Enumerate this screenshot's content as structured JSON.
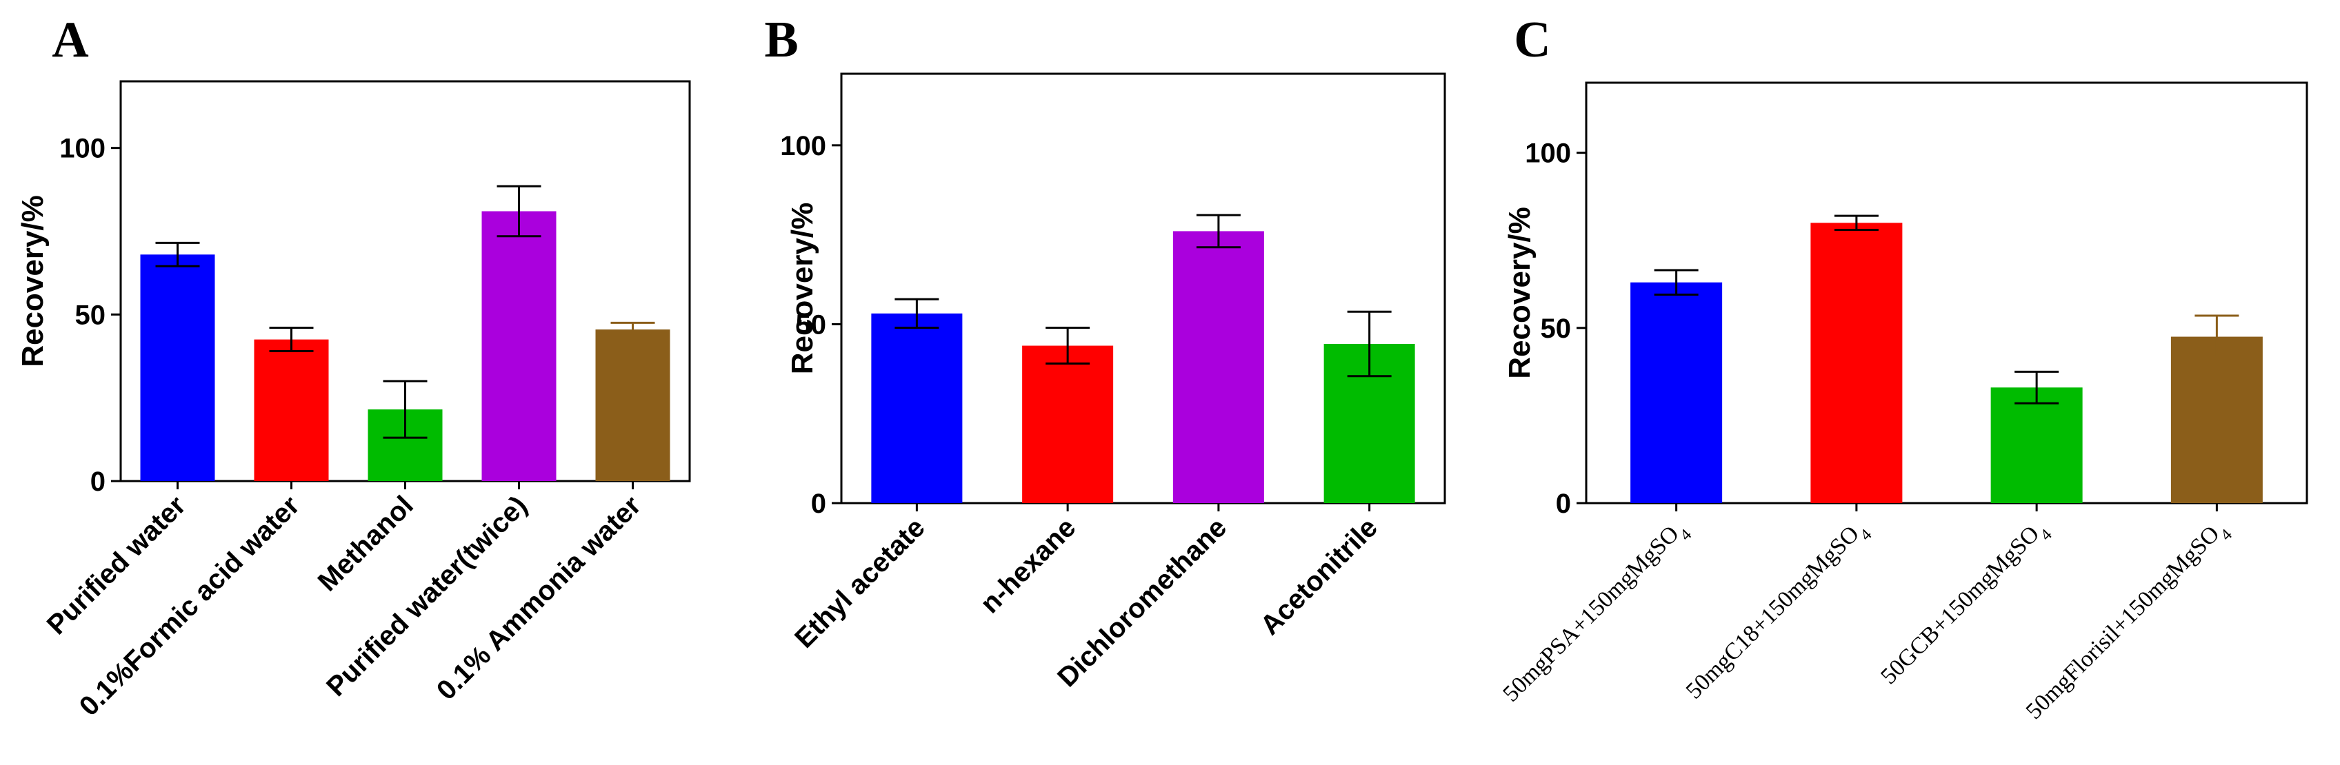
{
  "chart_data": [
    {
      "type": "bar",
      "panel": "A",
      "ylabel": "Recovery/%",
      "ylim": [
        0,
        120
      ],
      "yticks": [
        "0",
        "50",
        "100"
      ],
      "categories": [
        "Purified water",
        "0.1%Formic acid water",
        "Methanol",
        "Purified water(twice)",
        "0.1% Ammonia water"
      ],
      "values": [
        68,
        42.5,
        21.5,
        81,
        45.5
      ],
      "errors": [
        3.5,
        3.5,
        8.5,
        7.5,
        2
      ],
      "colors": [
        "#0000ff",
        "#ff0000",
        "#00bb00",
        "#aa00dd",
        "#8b5e1a"
      ]
    },
    {
      "type": "bar",
      "panel": "B",
      "ylabel": "Recovery/%",
      "ylim": [
        0,
        120
      ],
      "yticks": [
        "0",
        "50",
        "100"
      ],
      "categories": [
        "Ethyl acetate",
        "n-hexane",
        "Dichloromethane",
        "Acetonitrile"
      ],
      "values": [
        53,
        44,
        76,
        44.5
      ],
      "errors": [
        4,
        5,
        4.5,
        9
      ],
      "colors": [
        "#0000ff",
        "#ff0000",
        "#aa00dd",
        "#00bb00"
      ]
    },
    {
      "type": "bar",
      "panel": "C",
      "ylabel": "Recovery/%",
      "ylim": [
        0,
        120
      ],
      "yticks": [
        "0",
        "50",
        "100"
      ],
      "categories": [
        {
          "main": "50mgPSA+150mgMgSO",
          "sub": "4"
        },
        {
          "main": "50mgC18+150mgMgSO",
          "sub": "4"
        },
        {
          "main": "50GCB+150mgMgSO",
          "sub": "4"
        },
        {
          "main": "50mgFlorisil+150mgMgSO",
          "sub": "4"
        }
      ],
      "values": [
        63,
        80,
        33,
        47.5
      ],
      "errors": [
        3.5,
        2,
        4.5,
        6
      ],
      "colors": [
        "#0000ff",
        "#ff0000",
        "#00bb00",
        "#8b5e1a"
      ]
    }
  ]
}
